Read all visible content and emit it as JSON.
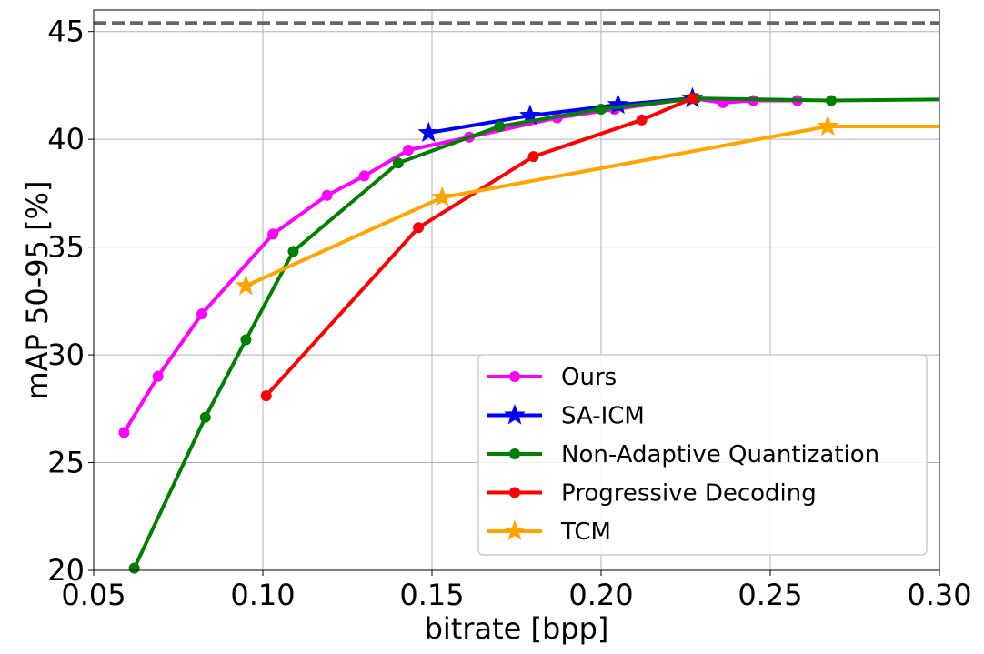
{
  "chart_data": {
    "type": "line",
    "title": "",
    "xlabel": "bitrate [bpp]",
    "ylabel": "mAP 50-95 [%]",
    "xlim": [
      0.05,
      0.3
    ],
    "ylim": [
      20,
      46
    ],
    "xticks": [
      "0.05",
      "0.10",
      "0.15",
      "0.20",
      "0.25",
      "0.30"
    ],
    "xtick_values": [
      0.05,
      0.1,
      0.15,
      0.2,
      0.25,
      0.3
    ],
    "yticks": [
      "20",
      "25",
      "30",
      "35",
      "40",
      "45"
    ],
    "ytick_values": [
      20,
      25,
      30,
      35,
      40,
      45
    ],
    "grid": true,
    "legend_position": "lower-right",
    "reference_line": {
      "y": 45.4,
      "style": "dashed",
      "color": "#666666"
    },
    "series": [
      {
        "name": "Ours",
        "color": "#ff00ff",
        "marker": "circle",
        "x": [
          0.059,
          0.069,
          0.082,
          0.103,
          0.119,
          0.13,
          0.143,
          0.161,
          0.187,
          0.204,
          0.227,
          0.236,
          0.245,
          0.258
        ],
        "y": [
          26.4,
          29.0,
          31.9,
          35.6,
          37.4,
          38.3,
          39.5,
          40.1,
          41.0,
          41.4,
          41.9,
          41.7,
          41.8,
          41.8
        ]
      },
      {
        "name": "SA-ICM",
        "color": "#0000ff",
        "marker": "star",
        "x": [
          0.149,
          0.179,
          0.205,
          0.227
        ],
        "y": [
          40.3,
          41.1,
          41.6,
          41.9
        ]
      },
      {
        "name": "Non-Adaptive Quantization",
        "color": "#008000",
        "marker": "circle",
        "x": [
          0.062,
          0.083,
          0.095,
          0.109,
          0.14,
          0.17,
          0.2,
          0.228,
          0.268,
          0.3
        ],
        "y": [
          20.1,
          27.1,
          30.7,
          34.8,
          38.9,
          40.6,
          41.4,
          41.9,
          41.8,
          41.85
        ]
      },
      {
        "name": "Progressive Decoding",
        "color": "#ff0000",
        "marker": "circle",
        "x": [
          0.101,
          0.146,
          0.18,
          0.212,
          0.227
        ],
        "y": [
          28.1,
          35.9,
          39.2,
          40.9,
          41.9
        ]
      },
      {
        "name": "TCM",
        "color": "#ffa500",
        "marker": "star",
        "x": [
          0.095,
          0.153,
          0.267,
          0.3
        ],
        "y": [
          33.2,
          37.3,
          40.6,
          40.6
        ]
      }
    ]
  }
}
